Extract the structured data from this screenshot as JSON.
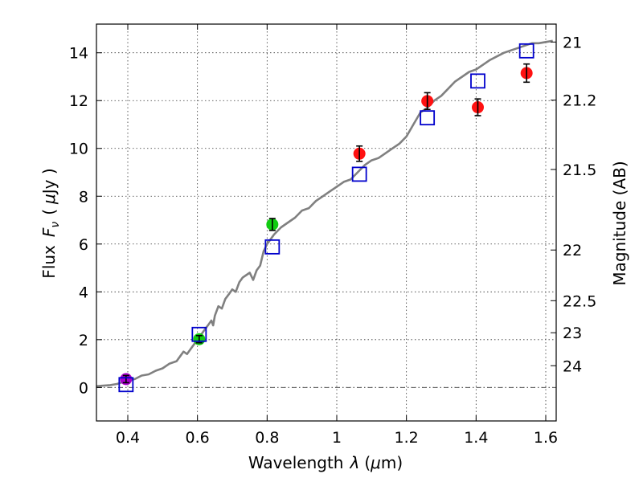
{
  "chart_data": {
    "type": "scatter",
    "xlabel": "Wavelength",
    "xlabel_symbol": "λ",
    "xlabel_unit_prefix": "(",
    "xlabel_unit_mu": "μ",
    "xlabel_unit_suffix": "m)",
    "ylabel_left": "Flux",
    "ylabel_symbol": "F",
    "ylabel_subscript": "ν",
    "ylabel_unit_prefix": "(",
    "ylabel_unit_mu": "μ",
    "ylabel_unit_suffix": "Jy )",
    "ylabel_right": "Magnitude (AB)",
    "xlim": [
      0.31,
      1.63
    ],
    "ylim": [
      -1.4,
      15.2
    ],
    "grid": true,
    "x_ticks": [
      0.4,
      0.6,
      0.8,
      1.0,
      1.2,
      1.4,
      1.6
    ],
    "x_tick_labels": [
      "0.4",
      "0.6",
      "0.8",
      "1",
      "1.2",
      "1.4",
      "1.6"
    ],
    "y_ticks": [
      0,
      2,
      4,
      6,
      8,
      10,
      12,
      14
    ],
    "y_tick_labels": [
      "0",
      "2",
      "4",
      "6",
      "8",
      "10",
      "12",
      "14"
    ],
    "mag_ticks": [
      {
        "label": "21",
        "flux": 14.45
      },
      {
        "label": "21.2",
        "flux": 12.02
      },
      {
        "label": "21.5",
        "flux": 9.12
      },
      {
        "label": "22",
        "flux": 5.75
      },
      {
        "label": "22.5",
        "flux": 3.63
      },
      {
        "label": "23",
        "flux": 2.29
      },
      {
        "label": "24",
        "flux": 0.91
      }
    ],
    "series": [
      {
        "name": "model spectrum",
        "kind": "line",
        "color": "#808080",
        "x": [
          0.31,
          0.33,
          0.35,
          0.37,
          0.39,
          0.4,
          0.42,
          0.44,
          0.46,
          0.48,
          0.5,
          0.52,
          0.54,
          0.55,
          0.56,
          0.57,
          0.58,
          0.59,
          0.6,
          0.61,
          0.62,
          0.63,
          0.64,
          0.645,
          0.65,
          0.66,
          0.67,
          0.68,
          0.69,
          0.7,
          0.71,
          0.72,
          0.73,
          0.74,
          0.75,
          0.76,
          0.77,
          0.78,
          0.79,
          0.8,
          0.81,
          0.82,
          0.84,
          0.86,
          0.88,
          0.9,
          0.92,
          0.94,
          0.96,
          0.98,
          1.0,
          1.02,
          1.04,
          1.06,
          1.08,
          1.1,
          1.12,
          1.14,
          1.16,
          1.18,
          1.2,
          1.22,
          1.24,
          1.26,
          1.28,
          1.3,
          1.32,
          1.34,
          1.36,
          1.38,
          1.4,
          1.42,
          1.44,
          1.46,
          1.48,
          1.5,
          1.52,
          1.54,
          1.56,
          1.58,
          1.6,
          1.62
        ],
        "values": [
          0.05,
          0.08,
          0.1,
          0.15,
          0.25,
          0.3,
          0.35,
          0.5,
          0.55,
          0.7,
          0.8,
          1.0,
          1.1,
          1.3,
          1.5,
          1.4,
          1.6,
          1.8,
          2.0,
          2.2,
          2.4,
          2.6,
          2.8,
          2.6,
          3.0,
          3.4,
          3.3,
          3.7,
          3.9,
          4.1,
          4.0,
          4.4,
          4.6,
          4.7,
          4.8,
          4.5,
          4.9,
          5.1,
          5.7,
          6.0,
          6.2,
          6.4,
          6.7,
          6.9,
          7.1,
          7.4,
          7.5,
          7.8,
          8.0,
          8.2,
          8.4,
          8.6,
          8.7,
          9.0,
          9.3,
          9.5,
          9.6,
          9.8,
          10.0,
          10.2,
          10.5,
          11.0,
          11.5,
          11.7,
          12.0,
          12.2,
          12.5,
          12.8,
          13.0,
          13.2,
          13.3,
          13.5,
          13.7,
          13.85,
          14.0,
          14.1,
          14.2,
          14.3,
          14.4,
          14.4,
          14.45,
          14.5
        ]
      },
      {
        "name": "observed (violet)",
        "kind": "points",
        "color": "#aa00cc",
        "x": [
          0.395
        ],
        "values": [
          0.35
        ],
        "errors": [
          0.15
        ]
      },
      {
        "name": "observed (green)",
        "kind": "points",
        "color": "#11cc11",
        "x": [
          0.605,
          0.815
        ],
        "values": [
          2.02,
          6.82
        ],
        "errors": [
          0.15,
          0.25
        ]
      },
      {
        "name": "observed (red)",
        "kind": "points",
        "color": "#ff1111",
        "x": [
          1.065,
          1.26,
          1.405,
          1.545
        ],
        "values": [
          9.78,
          11.98,
          11.72,
          13.15
        ],
        "errors": [
          0.32,
          0.35,
          0.35,
          0.38
        ]
      },
      {
        "name": "model photometry",
        "kind": "squares",
        "color": "#0000cc",
        "x": [
          0.395,
          0.605,
          0.815,
          1.065,
          1.26,
          1.405,
          1.545
        ],
        "values": [
          0.12,
          2.22,
          5.88,
          8.92,
          11.28,
          12.82,
          14.08
        ]
      }
    ]
  }
}
